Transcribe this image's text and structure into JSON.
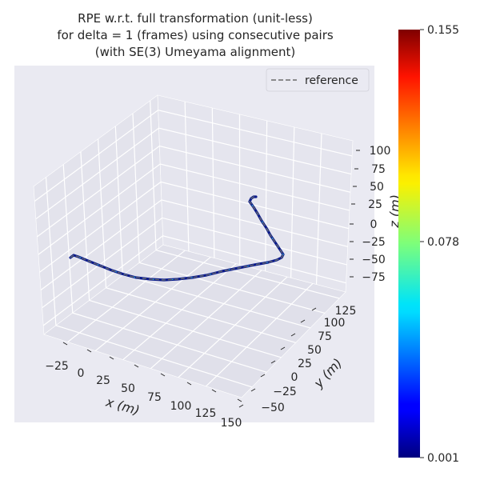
{
  "chart_data": {
    "type": "line3d",
    "title_lines": [
      "RPE w.r.t. full transformation (unit-less)",
      "for delta = 1 (frames) using consecutive pairs",
      "(with SE(3) Umeyama alignment)"
    ],
    "xlabel": "x (m)",
    "ylabel": "y (m)",
    "zlabel": "z (m)",
    "x_ticks": [
      "−25",
      "0",
      "25",
      "50",
      "75",
      "100",
      "125",
      "150"
    ],
    "y_ticks": [
      "−50",
      "−25",
      "0",
      "25",
      "50",
      "75",
      "100",
      "125"
    ],
    "z_ticks": [
      "100",
      "75",
      "50",
      "25",
      "0",
      "−25",
      "−50",
      "−75"
    ],
    "legend": [
      {
        "name": "reference",
        "style": "dashed",
        "color": "#6b6b6b"
      }
    ],
    "colorbar": {
      "min_label": "0.001",
      "mid_label": "0.078",
      "max_label": "0.155",
      "colormap": "jet"
    },
    "colors": {
      "pane": "#eaeaf2",
      "grid": "#ffffff",
      "trajectory": "#0a1a8c",
      "reference": "#6b6b6b"
    }
  }
}
